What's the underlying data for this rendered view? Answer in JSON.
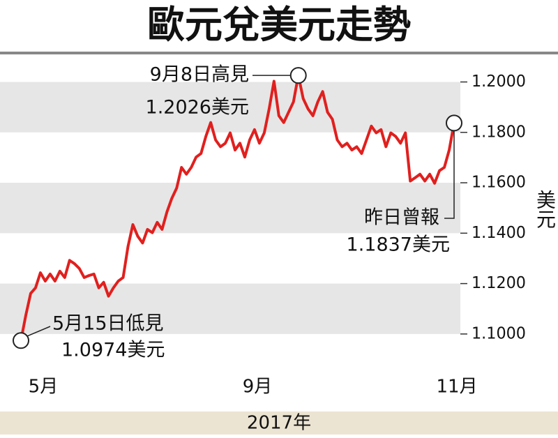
{
  "chart_data": {
    "type": "line",
    "title": "歐元兌美元走勢",
    "xlabel": "2017年",
    "ylabel": "美元",
    "series": [
      {
        "color": "#e0201e",
        "values": [
          1.0974,
          1.1074,
          1.1161,
          1.1183,
          1.1243,
          1.121,
          1.1238,
          1.121,
          1.1249,
          1.1224,
          1.1292,
          1.1279,
          1.126,
          1.1224,
          1.1232,
          1.1238,
          1.1183,
          1.1205,
          1.115,
          1.1183,
          1.121,
          1.1224,
          1.1347,
          1.1434,
          1.1388,
          1.1361,
          1.1415,
          1.1402,
          1.1443,
          1.1415,
          1.1484,
          1.1538,
          1.1579,
          1.1661,
          1.1634,
          1.1661,
          1.1702,
          1.1716,
          1.1784,
          1.1839,
          1.177,
          1.1743,
          1.1757,
          1.1798,
          1.173,
          1.1757,
          1.1702,
          1.177,
          1.1811,
          1.1757,
          1.1798,
          1.1893,
          1.2003,
          1.1866,
          1.1839,
          1.188,
          1.1921,
          1.2026,
          1.1934,
          1.1893,
          1.1866,
          1.1921,
          1.1962,
          1.188,
          1.1852,
          1.177,
          1.1743,
          1.1757,
          1.173,
          1.1743,
          1.1716,
          1.177,
          1.1825,
          1.1798,
          1.1811,
          1.1743,
          1.1798,
          1.1784,
          1.1757,
          1.1798,
          1.1607,
          1.162,
          1.1634,
          1.1607,
          1.1634,
          1.1598,
          1.1648,
          1.1661,
          1.173,
          1.1837
        ]
      }
    ],
    "xlim": [
      0,
      89
    ],
    "xticks": [
      {
        "value": 2,
        "label": "5月"
      },
      {
        "value": 46,
        "label": "9月"
      },
      {
        "value": 87,
        "label": "11月"
      }
    ],
    "ylim": [
      1.09,
      1.209
    ],
    "yticks": [
      {
        "value": 1.1,
        "label": "1.1000"
      },
      {
        "value": 1.12,
        "label": "1.1200"
      },
      {
        "value": 1.14,
        "label": "1.1400"
      },
      {
        "value": 1.16,
        "label": "1.1600"
      },
      {
        "value": 1.18,
        "label": "1.1800"
      },
      {
        "value": 1.2,
        "label": "1.2000"
      }
    ],
    "band_color": "#e6e6e6",
    "annotations": [
      {
        "x": 57,
        "lines": [
          "9月8日高見",
          "1.2026美元"
        ]
      },
      {
        "x": 0,
        "lines": [
          "5月15日低見",
          "1.0974美元"
        ]
      },
      {
        "x": 89,
        "lines": [
          "昨日曾報",
          "1.1837美元"
        ]
      }
    ]
  }
}
